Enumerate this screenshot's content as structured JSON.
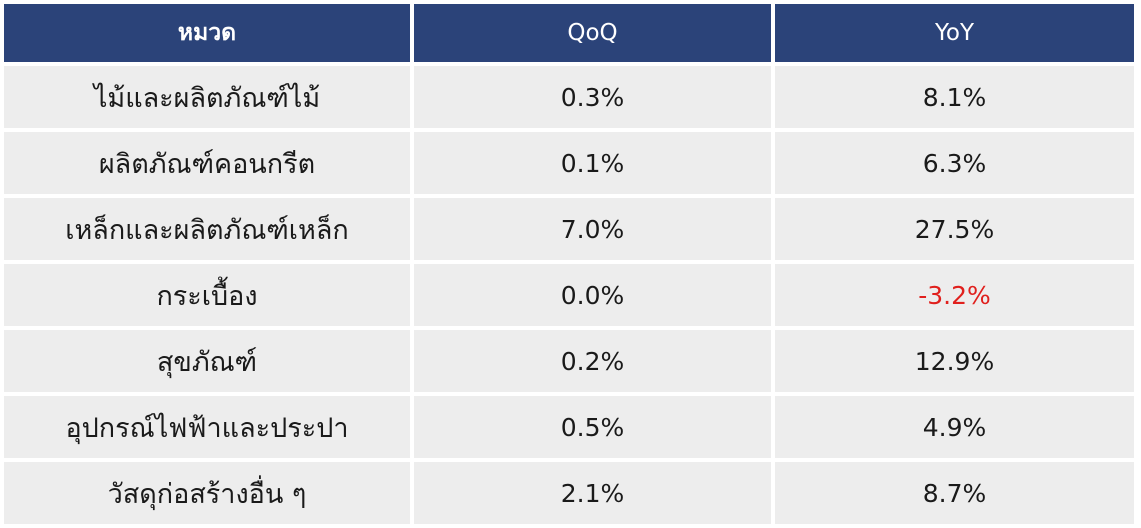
{
  "table": {
    "headers": [
      "หมวด",
      "QoQ",
      "YoY"
    ],
    "rows": [
      {
        "category": "ไม้และผลิตภัณฑ์ไม้",
        "qoq": "0.3%",
        "yoy": "8.1%"
      },
      {
        "category": "ผลิตภัณฑ์คอนกรีต",
        "qoq": "0.1%",
        "yoy": "6.3%"
      },
      {
        "category": "เหล็กและผลิตภัณฑ์เหล็ก",
        "qoq": "7.0%",
        "yoy": "27.5%"
      },
      {
        "category": "กระเบื้อง",
        "qoq": "0.0%",
        "yoy": "-3.2%"
      },
      {
        "category": "สุขภัณฑ์",
        "qoq": "0.2%",
        "yoy": "12.9%"
      },
      {
        "category": "อุปกรณ์ไฟฟ้าและประปา",
        "qoq": "0.5%",
        "yoy": "4.9%"
      },
      {
        "category": "วัสดุก่อสร้างอื่น ๆ",
        "qoq": "2.1%",
        "yoy": "8.7%"
      }
    ]
  },
  "colors": {
    "header_bg": "#2b4379",
    "cell_bg": "#ededed",
    "negative": "#e0201d"
  }
}
